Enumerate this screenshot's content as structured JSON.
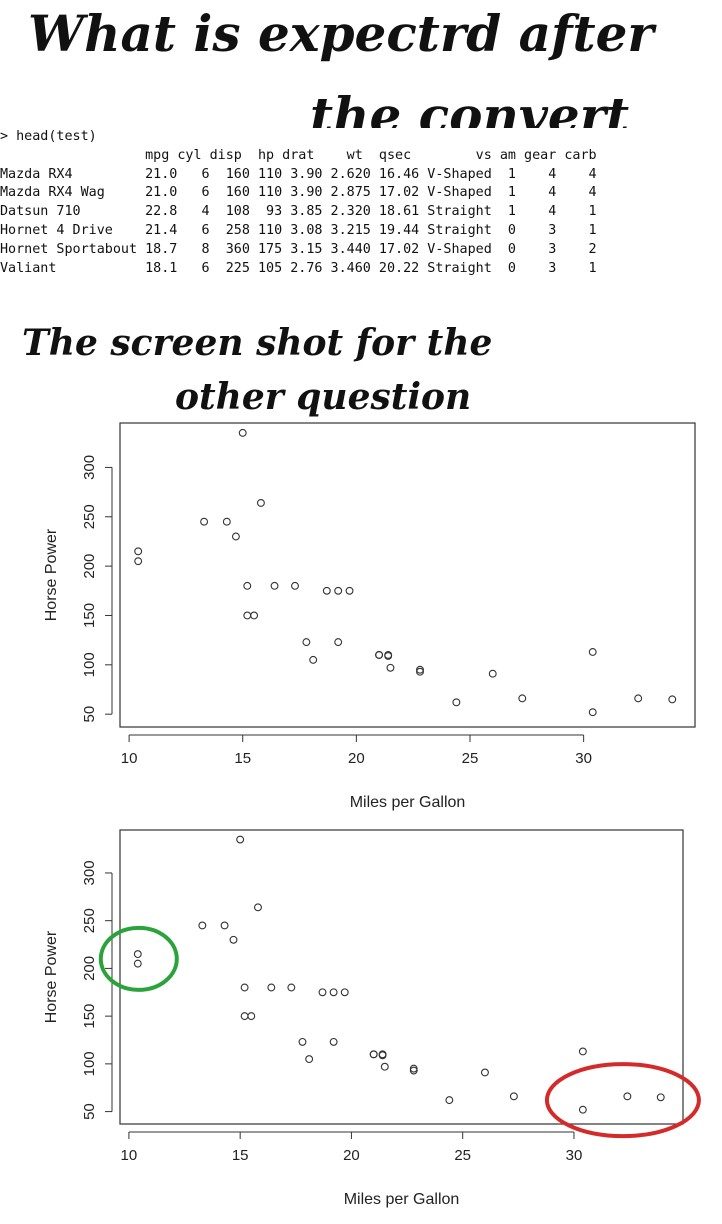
{
  "headings": {
    "top_line1": "What is expectrd after",
    "top_line2": "the convert",
    "mid_line1": "The screen shot  for the",
    "mid_line2": "other question"
  },
  "console": {
    "prompt": "> head(test)",
    "header": "                  mpg cyl disp  hp drat    wt  qsec        vs am gear carb",
    "rows": [
      "Mazda RX4         21.0   6  160 110 3.90 2.620 16.46 V-Shaped  1    4    4",
      "Mazda RX4 Wag     21.0   6  160 110 3.90 2.875 17.02 V-Shaped  1    4    4",
      "Datsun 710        22.8   4  108  93 3.85 2.320 18.61 Straight  1    4    1",
      "Hornet 4 Drive    21.4   6  258 110 3.08 3.215 19.44 Straight  0    3    1",
      "Hornet Sportabout 18.7   8  360 175 3.15 3.440 17.02 V-Shaped  0    3    2",
      "Valiant           18.1   6  225 105 2.76 3.460 20.22 Straight  0    3    1"
    ]
  },
  "chart_data": [
    {
      "type": "scatter",
      "xlabel": "Miles per Gallon",
      "ylabel": "Horse Power",
      "xlim": [
        9.6,
        34.9
      ],
      "ylim": [
        37,
        345
      ],
      "xticks": [
        10,
        15,
        20,
        25,
        30
      ],
      "yticks": [
        50,
        100,
        150,
        200,
        250,
        300
      ],
      "points": [
        [
          21.0,
          110
        ],
        [
          21.0,
          110
        ],
        [
          22.8,
          93
        ],
        [
          21.4,
          110
        ],
        [
          18.7,
          175
        ],
        [
          18.1,
          105
        ],
        [
          14.3,
          245
        ],
        [
          24.4,
          62
        ],
        [
          22.8,
          95
        ],
        [
          19.2,
          123
        ],
        [
          17.8,
          123
        ],
        [
          16.4,
          180
        ],
        [
          17.3,
          180
        ],
        [
          15.2,
          180
        ],
        [
          10.4,
          205
        ],
        [
          10.4,
          215
        ],
        [
          14.7,
          230
        ],
        [
          32.4,
          66
        ],
        [
          30.4,
          52
        ],
        [
          33.9,
          65
        ],
        [
          21.5,
          97
        ],
        [
          15.5,
          150
        ],
        [
          15.2,
          150
        ],
        [
          13.3,
          245
        ],
        [
          19.2,
          175
        ],
        [
          27.3,
          66
        ],
        [
          26.0,
          91
        ],
        [
          30.4,
          113
        ],
        [
          15.8,
          264
        ],
        [
          19.7,
          175
        ],
        [
          15.0,
          335
        ],
        [
          21.4,
          109
        ]
      ]
    },
    {
      "type": "scatter",
      "xlabel": "Miles per Gallon",
      "ylabel": "Horse Power",
      "xlim": [
        9.6,
        34.9
      ],
      "ylim": [
        37,
        345
      ],
      "xticks": [
        10,
        15,
        20,
        25,
        30
      ],
      "yticks": [
        50,
        100,
        150,
        200,
        250,
        300
      ],
      "points": [
        [
          21.0,
          110
        ],
        [
          21.0,
          110
        ],
        [
          22.8,
          93
        ],
        [
          21.4,
          110
        ],
        [
          18.7,
          175
        ],
        [
          18.1,
          105
        ],
        [
          14.3,
          245
        ],
        [
          24.4,
          62
        ],
        [
          22.8,
          95
        ],
        [
          19.2,
          123
        ],
        [
          17.8,
          123
        ],
        [
          16.4,
          180
        ],
        [
          17.3,
          180
        ],
        [
          15.2,
          180
        ],
        [
          10.4,
          205
        ],
        [
          10.4,
          215
        ],
        [
          14.7,
          230
        ],
        [
          32.4,
          66
        ],
        [
          30.4,
          52
        ],
        [
          33.9,
          65
        ],
        [
          21.5,
          97
        ],
        [
          15.5,
          150
        ],
        [
          15.2,
          150
        ],
        [
          13.3,
          245
        ],
        [
          19.2,
          175
        ],
        [
          27.3,
          66
        ],
        [
          26.0,
          91
        ],
        [
          30.4,
          113
        ],
        [
          15.8,
          264
        ],
        [
          19.7,
          175
        ],
        [
          15.0,
          335
        ],
        [
          21.4,
          109
        ]
      ],
      "annotations": [
        {
          "shape": "ellipse",
          "color": "#2aa43a",
          "around": "points near mpg 10.4"
        },
        {
          "shape": "ellipse",
          "color": "#d42a2a",
          "around": "points near mpg 30-34"
        }
      ]
    }
  ]
}
